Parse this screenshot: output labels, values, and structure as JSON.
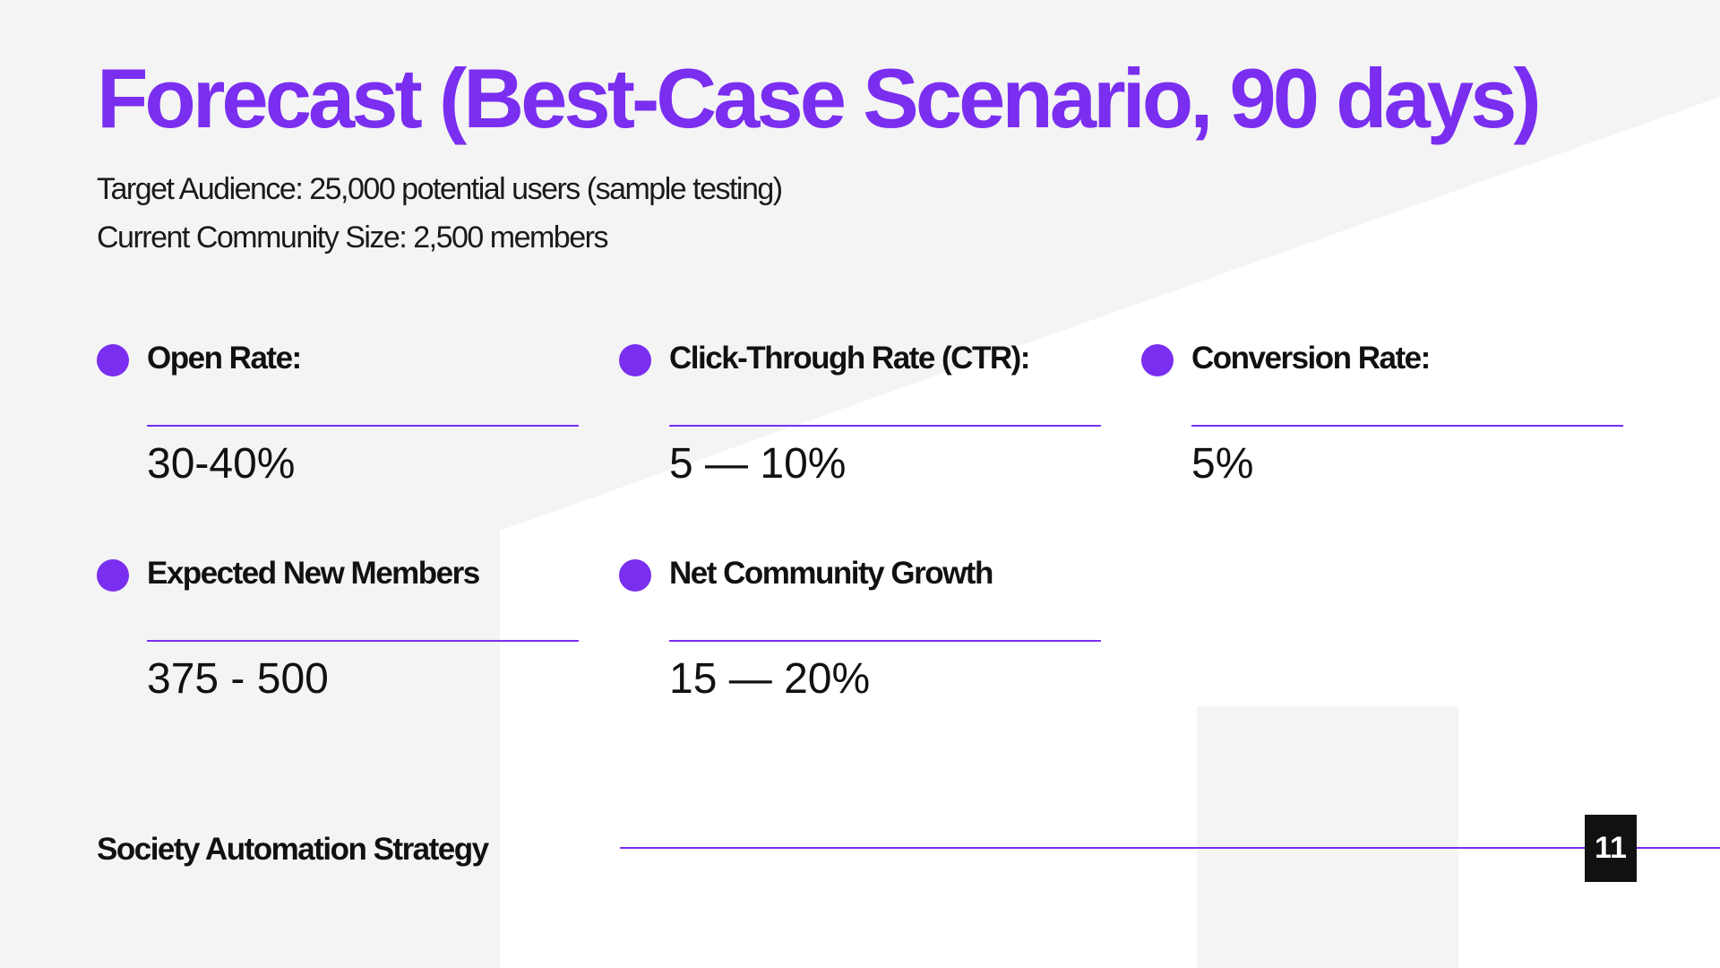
{
  "slide": {
    "title": "Forecast (Best-Case Scenario, 90 days)",
    "target_audience": "Target Audience: 25,000 potential users (sample testing)",
    "community_size": "Current Community Size: 2,500 members",
    "metrics": [
      {
        "label": "Open Rate:",
        "value": "30-40%"
      },
      {
        "label": "Click-Through Rate (CTR):",
        "value": "5 — 10%"
      },
      {
        "label": "Conversion Rate:",
        "value": "5%"
      },
      {
        "label": "Expected New Members",
        "value": "375 - 500"
      },
      {
        "label": "Net Community Growth",
        "value": "15 — 20%"
      }
    ],
    "footer": "Society Automation Strategy",
    "page_number": "11"
  },
  "colors": {
    "accent": "#7a2ef0",
    "background": "#f4f4f4",
    "white_shape": "#ffffff",
    "text": "#111111"
  }
}
